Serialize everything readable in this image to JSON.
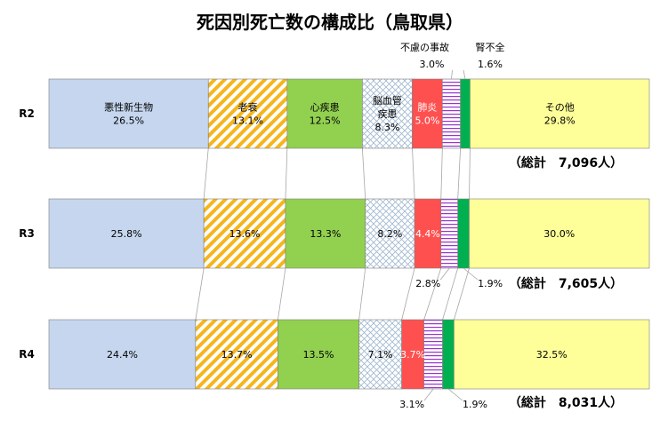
{
  "chart_data": {
    "type": "bar",
    "stacked": "100%",
    "orientation": "horizontal",
    "title": "死因別死亡数の構成比（鳥取県）",
    "categories": [
      "R2",
      "R3",
      "R4"
    ],
    "series": [
      {
        "name": "悪性新生物",
        "values": [
          26.5,
          25.8,
          24.4
        ],
        "color": "#c5d6ee"
      },
      {
        "name": "老衰",
        "values": [
          13.1,
          13.6,
          13.7
        ],
        "color": "#f5b51c",
        "pattern": "diagonal-stripes"
      },
      {
        "name": "心疾患",
        "values": [
          12.5,
          13.3,
          13.5
        ],
        "color": "#92d050"
      },
      {
        "name": "脳血管\n疾患",
        "values": [
          8.3,
          8.2,
          7.1
        ],
        "color": "#9fb7cf",
        "pattern": "crosshatch"
      },
      {
        "name": "肺炎",
        "values": [
          5.0,
          4.4,
          3.7
        ],
        "color": "#ff5050"
      },
      {
        "name": "不慮の事故",
        "values": [
          3.0,
          2.8,
          3.1
        ],
        "color": "#9933cc",
        "pattern": "horizontal-lines"
      },
      {
        "name": "腎不全",
        "values": [
          1.6,
          1.9,
          1.9
        ],
        "color": "#00b050"
      },
      {
        "name": "その他",
        "values": [
          29.8,
          30.0,
          32.5
        ],
        "color": "#ffff99"
      }
    ],
    "segment_labels": [
      [
        "悪性新生物\n26.5%",
        "老衰\n13.1%",
        "心疾患\n12.5%",
        "脳血管\n疾患\n8.3%",
        "肺炎\n5.0%",
        "",
        "",
        "その他\n29.8%"
      ],
      [
        "25.8%",
        "13.6%",
        "13.3%",
        "8.2%",
        "4.4%",
        "",
        "",
        "30.0%"
      ],
      [
        "24.4%",
        "13.7%",
        "13.5%",
        "7.1%",
        "3.7%",
        "",
        "",
        "32.5%"
      ]
    ],
    "outside_labels": [
      {
        "row": 0,
        "series": 5,
        "name": "不慮の事故",
        "value": "3.0%",
        "position": "above"
      },
      {
        "row": 0,
        "series": 6,
        "name": "腎不全",
        "value": "1.6%",
        "position": "above"
      },
      {
        "row": 1,
        "series": 5,
        "value": "2.8%",
        "position": "below"
      },
      {
        "row": 1,
        "series": 6,
        "value": "1.9%",
        "position": "below"
      },
      {
        "row": 2,
        "series": 5,
        "value": "3.1%",
        "position": "below"
      },
      {
        "row": 2,
        "series": 6,
        "value": "1.9%",
        "position": "below"
      }
    ],
    "totals": [
      "（総計　7,096人）",
      "（総計　7,605人）",
      "（総計　8,031人）"
    ],
    "series_lines": true,
    "legend": "none",
    "grid": false
  }
}
